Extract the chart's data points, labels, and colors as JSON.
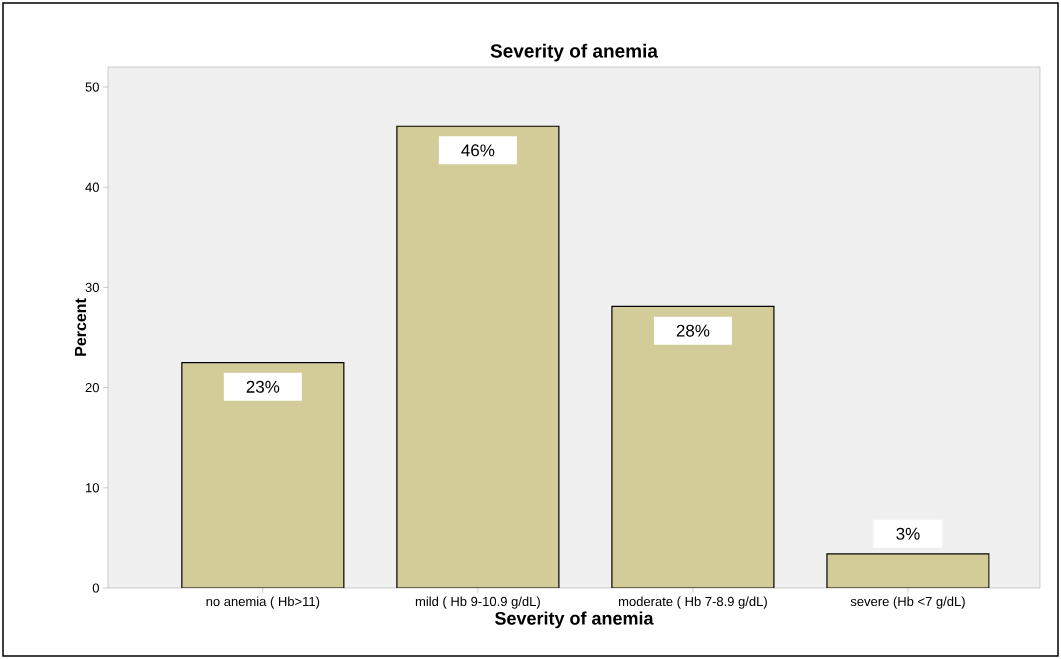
{
  "chart_data": {
    "type": "bar",
    "title": "Severity of anemia",
    "xlabel": "Severity of anemia",
    "ylabel": "Percent",
    "categories": [
      "no anemia ( Hb>11)",
      "mild ( Hb 9-10.9 g/dL)",
      "moderate ( Hb 7-8.9 g/dL)",
      "severe (Hb <7 g/dL)"
    ],
    "values": [
      22.5,
      46.1,
      28.1,
      3.4
    ],
    "value_labels": [
      "23%",
      "46%",
      "28%",
      "3%"
    ],
    "color": "#d3cc99",
    "ylim": [
      0,
      52
    ],
    "yticks": [
      0,
      10,
      20,
      30,
      40,
      50
    ]
  }
}
